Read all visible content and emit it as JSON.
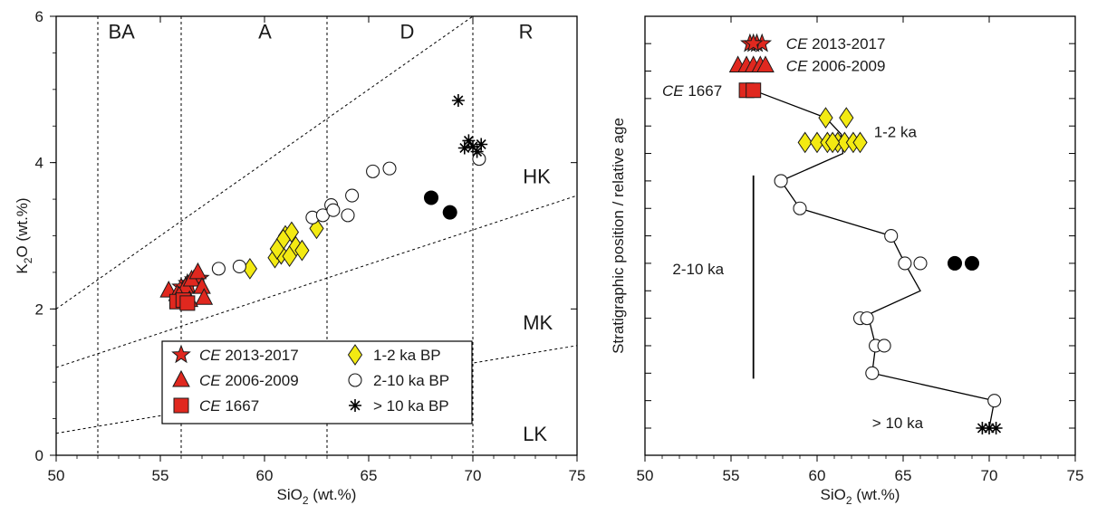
{
  "colors": {
    "axis": "#000000",
    "recent": "#e0281f",
    "recent_stroke": "#1a1a1a",
    "ka12": "#f3ea12",
    "open": "#ffffff",
    "solid": "#000000"
  },
  "chart_data": [
    {
      "type": "scatter",
      "title": "",
      "xlabel": "SiO",
      "xlabel_sub": "2",
      "xlabel_tail": " (wt.%)",
      "ylabel": "K",
      "ylabel_sub": "2",
      "ylabel_tail": "O (wt.%)",
      "xlim": [
        50,
        75
      ],
      "ylim": [
        0,
        6
      ],
      "xticks": [
        "50",
        "55",
        "60",
        "65",
        "70",
        "75"
      ],
      "yticks": [
        "0",
        "2",
        "4",
        "6"
      ],
      "xtick_values": [
        50,
        55,
        60,
        65,
        70,
        75
      ],
      "ytick_values": [
        0,
        2,
        4,
        6
      ],
      "field_boundaries_x": [
        52,
        56,
        63,
        70
      ],
      "field_labels": [
        {
          "text": "BA",
          "x": 52.5,
          "y": 5.7
        },
        {
          "text": "A",
          "x": 59.7,
          "y": 5.7
        },
        {
          "text": "D",
          "x": 66.5,
          "y": 5.7
        },
        {
          "text": "R",
          "x": 72.2,
          "y": 5.7
        },
        {
          "text": "HK",
          "x": 72.4,
          "y": 3.72
        },
        {
          "text": "MK",
          "x": 72.4,
          "y": 1.72
        },
        {
          "text": "LK",
          "x": 72.4,
          "y": 0.2
        }
      ],
      "series_lines": [
        {
          "points": [
            [
              50,
              2.0
            ],
            [
              70,
              6.0
            ]
          ]
        },
        {
          "points": [
            [
              50,
              1.2
            ],
            [
              75,
              3.55
            ]
          ]
        },
        {
          "points": [
            [
              50,
              0.3
            ],
            [
              75,
              1.5
            ]
          ]
        }
      ],
      "series": [
        {
          "name": "CE 2013-2017",
          "marker": "star",
          "fill": "recent",
          "points": [
            [
              56.3,
              2.35
            ],
            [
              56.6,
              2.4
            ],
            [
              56.0,
              2.3
            ],
            [
              56.9,
              2.42
            ],
            [
              56.4,
              2.32
            ]
          ]
        },
        {
          "name": "CE 2006-2009",
          "marker": "triangle",
          "fill": "recent",
          "points": [
            [
              55.4,
              2.25
            ],
            [
              55.8,
              2.2
            ],
            [
              56.2,
              2.3
            ],
            [
              56.5,
              2.4
            ],
            [
              56.8,
              2.5
            ],
            [
              57.0,
              2.3
            ],
            [
              57.1,
              2.15
            ],
            [
              56.4,
              2.12
            ],
            [
              55.9,
              2.18
            ]
          ]
        },
        {
          "name": "CE 1667",
          "marker": "square",
          "fill": "recent",
          "points": [
            [
              55.8,
              2.1
            ],
            [
              56.1,
              2.12
            ],
            [
              56.3,
              2.08
            ]
          ]
        },
        {
          "name": "1-2 ka BP",
          "marker": "diamond",
          "fill": "ka12",
          "points": [
            [
              59.3,
              2.55
            ],
            [
              60.5,
              2.7
            ],
            [
              60.8,
              2.75
            ],
            [
              61.0,
              3.0
            ],
            [
              61.3,
              3.05
            ],
            [
              60.9,
              2.95
            ],
            [
              61.5,
              2.85
            ],
            [
              61.8,
              2.8
            ],
            [
              62.5,
              3.1
            ],
            [
              61.2,
              2.72
            ],
            [
              60.6,
              2.82
            ]
          ]
        },
        {
          "name": "2-10 ka BP",
          "marker": "circle",
          "fill": "open",
          "points": [
            [
              57.8,
              2.55
            ],
            [
              58.8,
              2.58
            ],
            [
              62.3,
              3.25
            ],
            [
              62.8,
              3.28
            ],
            [
              63.2,
              3.42
            ],
            [
              63.3,
              3.35
            ],
            [
              64.0,
              3.28
            ],
            [
              64.2,
              3.55
            ],
            [
              65.2,
              3.88
            ],
            [
              66.0,
              3.92
            ],
            [
              70.3,
              4.05
            ]
          ]
        },
        {
          "name": "> 10 ka BP",
          "marker": "asterisk",
          "fill": "solid",
          "points": [
            [
              69.3,
              4.85
            ],
            [
              69.8,
              4.3
            ],
            [
              70.0,
              4.22
            ],
            [
              70.4,
              4.25
            ],
            [
              69.6,
              4.2
            ],
            [
              70.2,
              4.15
            ]
          ]
        },
        {
          "name": "",
          "marker": "dot",
          "fill": "solid",
          "points": [
            [
              68.0,
              3.52
            ],
            [
              68.9,
              3.32
            ]
          ]
        }
      ],
      "legend": {
        "placement": "bottom-center",
        "entries": [
          {
            "ce": "CE",
            "text": " 2013-2017",
            "marker": "star",
            "fill": "recent"
          },
          {
            "ce": "",
            "text": "1-2 ka BP",
            "marker": "diamond",
            "fill": "ka12"
          },
          {
            "ce": "CE",
            "text": " 2006-2009",
            "marker": "triangle",
            "fill": "recent"
          },
          {
            "ce": "",
            "text": "2-10 ka BP",
            "marker": "circle",
            "fill": "open"
          },
          {
            "ce": "CE",
            "text": " 1667",
            "marker": "square",
            "fill": "recent"
          },
          {
            "ce": "",
            "text": "> 10 ka BP",
            "marker": "asterisk",
            "fill": "solid"
          }
        ]
      }
    },
    {
      "type": "scatter",
      "title": "",
      "xlabel": "SiO",
      "xlabel_sub": "2",
      "xlabel_tail": " (wt.%)",
      "ylabel": "Stratigraphic position / relative age",
      "xlim": [
        50,
        75
      ],
      "ylim": [
        0,
        15
      ],
      "xticks": [
        "50",
        "55",
        "60",
        "65",
        "70",
        "75"
      ],
      "xtick_values": [
        50,
        55,
        60,
        65,
        70,
        75
      ],
      "ytick_count": 15,
      "trend_line": [
        [
          56.3,
          12.3
        ],
        [
          60.5,
          11.3
        ],
        [
          61.4,
          10.7
        ],
        [
          61.5,
          10.0
        ],
        [
          57.9,
          9.0
        ],
        [
          59.0,
          8.0
        ],
        [
          64.3,
          7.0
        ],
        [
          65.1,
          6.0
        ],
        [
          66.0,
          5.0
        ],
        [
          62.5,
          4.0
        ],
        [
          63.0,
          4.0
        ],
        [
          63.4,
          3.0
        ],
        [
          63.2,
          2.0
        ],
        [
          70.3,
          1.0
        ],
        [
          70.0,
          0.0
        ]
      ],
      "series": [
        {
          "name": "CE 2013-2017",
          "marker": "star",
          "fill": "recent",
          "points": [
            [
              56.1,
              14.0
            ],
            [
              56.5,
              14.0
            ],
            [
              56.8,
              14.0
            ],
            [
              56.3,
              14.0
            ]
          ]
        },
        {
          "name": "CE 2006-2009",
          "marker": "triangle",
          "fill": "recent",
          "points": [
            [
              55.4,
              13.2
            ],
            [
              55.9,
              13.2
            ],
            [
              56.3,
              13.2
            ],
            [
              56.7,
              13.2
            ],
            [
              57.0,
              13.2
            ]
          ]
        },
        {
          "name": "CE 1667",
          "marker": "square",
          "fill": "recent",
          "points": [
            [
              55.9,
              12.3
            ],
            [
              56.3,
              12.3
            ]
          ]
        },
        {
          "name": "1-2 ka",
          "marker": "diamond",
          "fill": "ka12",
          "points": [
            [
              60.5,
              11.3
            ],
            [
              61.7,
              11.3
            ],
            [
              59.3,
              10.4
            ],
            [
              60.0,
              10.4
            ],
            [
              60.6,
              10.4
            ],
            [
              61.2,
              10.4
            ],
            [
              61.6,
              10.4
            ],
            [
              62.1,
              10.4
            ],
            [
              62.5,
              10.4
            ],
            [
              60.9,
              10.4
            ]
          ]
        },
        {
          "name": "2-10 ka",
          "marker": "circle",
          "fill": "open",
          "points": [
            [
              57.9,
              9.0
            ],
            [
              59.0,
              8.0
            ],
            [
              64.3,
              7.0
            ],
            [
              65.1,
              6.0
            ],
            [
              66.0,
              6.0
            ],
            [
              62.5,
              4.0
            ],
            [
              62.9,
              4.0
            ],
            [
              63.4,
              3.0
            ],
            [
              63.9,
              3.0
            ],
            [
              63.2,
              2.0
            ],
            [
              70.3,
              1.0
            ]
          ]
        },
        {
          "name": "> 10 ka",
          "marker": "asterisk",
          "fill": "solid",
          "points": [
            [
              69.6,
              0.0
            ],
            [
              70.0,
              0.0
            ],
            [
              70.4,
              0.0
            ]
          ]
        },
        {
          "name": "",
          "marker": "dot",
          "fill": "solid",
          "points": [
            [
              68.0,
              6.0
            ],
            [
              69.0,
              6.0
            ]
          ]
        }
      ],
      "bracket": {
        "x": 56.3,
        "y_from": 9.2,
        "y_to": 1.8
      },
      "annotations": [
        {
          "ce": "CE",
          "text": " 2013-2017",
          "x": 58.2,
          "y": 14.0
        },
        {
          "ce": "CE",
          "text": " 2006-2009",
          "x": 58.2,
          "y": 13.2
        },
        {
          "ce": "CE",
          "text": " 1667",
          "x": 51.0,
          "y": 12.3
        },
        {
          "ce": "",
          "text": "1-2 ka",
          "x": 63.3,
          "y": 10.8
        },
        {
          "ce": "",
          "text": "2-10 ka",
          "x": 51.6,
          "y": 5.8
        },
        {
          "ce": "",
          "text": "> 10 ka",
          "x": 63.2,
          "y": 0.2
        }
      ]
    }
  ]
}
